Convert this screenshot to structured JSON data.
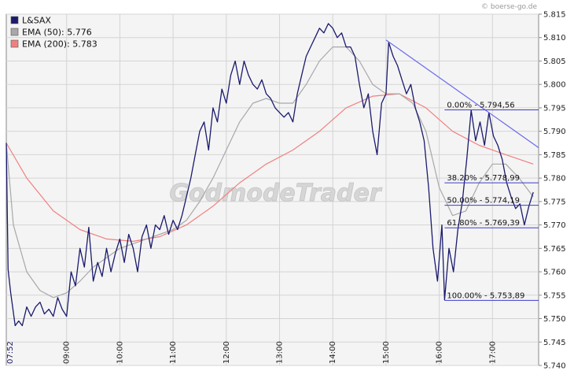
{
  "source": "© boerse-go.de",
  "watermark": "GodmodeTrader",
  "legend": [
    {
      "label": "L&SAX",
      "color": "#1a1a6e"
    },
    {
      "label": "EMA (50): 5.776",
      "color": "#a8a8a8"
    },
    {
      "label": "EMA (200): 5.783",
      "color": "#f08080"
    }
  ],
  "chart_data": {
    "type": "line",
    "xlim": [
      "07:52",
      "17:52"
    ],
    "ylim": [
      5.74,
      5.815
    ],
    "y_ticks": [
      "5.740",
      "5.745",
      "5.750",
      "5.755",
      "5.760",
      "5.765",
      "5.770",
      "5.775",
      "5.780",
      "5.785",
      "5.790",
      "5.795",
      "5.800",
      "5.805",
      "5.810",
      "5.815"
    ],
    "x_ticks": [
      "07:52",
      "09:00",
      "10:00",
      "11:00",
      "12:00",
      "13:00",
      "14:00",
      "15:00",
      "16:00",
      "17:00"
    ],
    "grid": true,
    "legend_position": "top-left",
    "series": [
      {
        "name": "L&SAX",
        "color": "#1a1a6e",
        "points": [
          [
            "07:52",
            5.7875
          ],
          [
            "07:54",
            5.7605
          ],
          [
            "07:57",
            5.7555
          ],
          [
            "08:02",
            5.7485
          ],
          [
            "08:06",
            5.7495
          ],
          [
            "08:10",
            5.7485
          ],
          [
            "08:15",
            5.7525
          ],
          [
            "08:20",
            5.7505
          ],
          [
            "08:25",
            5.7525
          ],
          [
            "08:30",
            5.7535
          ],
          [
            "08:35",
            5.751
          ],
          [
            "08:40",
            5.752
          ],
          [
            "08:45",
            5.7505
          ],
          [
            "08:50",
            5.7545
          ],
          [
            "08:55",
            5.752
          ],
          [
            "09:00",
            5.7505
          ],
          [
            "09:05",
            5.76
          ],
          [
            "09:10",
            5.757
          ],
          [
            "09:15",
            5.765
          ],
          [
            "09:20",
            5.761
          ],
          [
            "09:25",
            5.7695
          ],
          [
            "09:30",
            5.758
          ],
          [
            "09:35",
            5.762
          ],
          [
            "09:40",
            5.759
          ],
          [
            "09:45",
            5.765
          ],
          [
            "09:50",
            5.76
          ],
          [
            "09:55",
            5.764
          ],
          [
            "10:00",
            5.767
          ],
          [
            "10:05",
            5.762
          ],
          [
            "10:10",
            5.768
          ],
          [
            "10:15",
            5.765
          ],
          [
            "10:20",
            5.76
          ],
          [
            "10:25",
            5.7675
          ],
          [
            "10:30",
            5.77
          ],
          [
            "10:35",
            5.765
          ],
          [
            "10:40",
            5.77
          ],
          [
            "10:45",
            5.769
          ],
          [
            "10:50",
            5.772
          ],
          [
            "10:55",
            5.768
          ],
          [
            "11:00",
            5.771
          ],
          [
            "11:05",
            5.769
          ],
          [
            "11:10",
            5.772
          ],
          [
            "11:15",
            5.776
          ],
          [
            "11:20",
            5.78
          ],
          [
            "11:25",
            5.785
          ],
          [
            "11:30",
            5.79
          ],
          [
            "11:35",
            5.792
          ],
          [
            "11:40",
            5.786
          ],
          [
            "11:45",
            5.795
          ],
          [
            "11:50",
            5.792
          ],
          [
            "11:55",
            5.799
          ],
          [
            "12:00",
            5.796
          ],
          [
            "12:05",
            5.802
          ],
          [
            "12:10",
            5.805
          ],
          [
            "12:15",
            5.8
          ],
          [
            "12:20",
            5.805
          ],
          [
            "12:25",
            5.802
          ],
          [
            "12:30",
            5.8
          ],
          [
            "12:35",
            5.799
          ],
          [
            "12:40",
            5.801
          ],
          [
            "12:45",
            5.798
          ],
          [
            "12:50",
            5.797
          ],
          [
            "12:55",
            5.795
          ],
          [
            "13:00",
            5.794
          ],
          [
            "13:05",
            5.793
          ],
          [
            "13:10",
            5.794
          ],
          [
            "13:15",
            5.792
          ],
          [
            "13:20",
            5.798
          ],
          [
            "13:25",
            5.802
          ],
          [
            "13:30",
            5.806
          ],
          [
            "13:35",
            5.808
          ],
          [
            "13:40",
            5.81
          ],
          [
            "13:45",
            5.812
          ],
          [
            "13:50",
            5.811
          ],
          [
            "13:55",
            5.813
          ],
          [
            "14:00",
            5.812
          ],
          [
            "14:05",
            5.81
          ],
          [
            "14:10",
            5.811
          ],
          [
            "14:15",
            5.808
          ],
          [
            "14:20",
            5.808
          ],
          [
            "14:25",
            5.806
          ],
          [
            "14:30",
            5.8
          ],
          [
            "14:35",
            5.795
          ],
          [
            "14:40",
            5.798
          ],
          [
            "14:45",
            5.79
          ],
          [
            "14:50",
            5.785
          ],
          [
            "14:55",
            5.796
          ],
          [
            "15:00",
            5.798
          ],
          [
            "15:03",
            5.809
          ],
          [
            "15:08",
            5.806
          ],
          [
            "15:13",
            5.804
          ],
          [
            "15:18",
            5.801
          ],
          [
            "15:23",
            5.798
          ],
          [
            "15:28",
            5.8
          ],
          [
            "15:33",
            5.795
          ],
          [
            "15:38",
            5.792
          ],
          [
            "15:43",
            5.788
          ],
          [
            "15:48",
            5.778
          ],
          [
            "15:53",
            5.765
          ],
          [
            "15:58",
            5.758
          ],
          [
            "16:03",
            5.77
          ],
          [
            "16:06",
            5.754
          ],
          [
            "16:11",
            5.765
          ],
          [
            "16:16",
            5.76
          ],
          [
            "16:21",
            5.769
          ],
          [
            "16:26",
            5.775
          ],
          [
            "16:31",
            5.784
          ],
          [
            "16:36",
            5.7945
          ],
          [
            "16:41",
            5.788
          ],
          [
            "16:46",
            5.792
          ],
          [
            "16:51",
            5.787
          ],
          [
            "16:56",
            5.794
          ],
          [
            "17:01",
            5.789
          ],
          [
            "17:06",
            5.787
          ],
          [
            "17:11",
            5.784
          ],
          [
            "17:16",
            5.779
          ],
          [
            "17:21",
            5.776
          ],
          [
            "17:26",
            5.7735
          ],
          [
            "17:31",
            5.7745
          ],
          [
            "17:36",
            5.77
          ],
          [
            "17:41",
            5.774
          ],
          [
            "17:46",
            5.777
          ]
        ]
      },
      {
        "name": "EMA (50)",
        "color": "#a8a8a8",
        "points": [
          [
            "07:52",
            5.7875
          ],
          [
            "08:00",
            5.77
          ],
          [
            "08:15",
            5.76
          ],
          [
            "08:30",
            5.756
          ],
          [
            "08:45",
            5.7545
          ],
          [
            "09:00",
            5.7555
          ],
          [
            "09:15",
            5.758
          ],
          [
            "09:30",
            5.761
          ],
          [
            "09:45",
            5.763
          ],
          [
            "10:00",
            5.765
          ],
          [
            "10:15",
            5.766
          ],
          [
            "10:30",
            5.767
          ],
          [
            "10:45",
            5.768
          ],
          [
            "11:00",
            5.769
          ],
          [
            "11:15",
            5.771
          ],
          [
            "11:30",
            5.775
          ],
          [
            "11:45",
            5.78
          ],
          [
            "12:00",
            5.786
          ],
          [
            "12:15",
            5.792
          ],
          [
            "12:30",
            5.796
          ],
          [
            "12:45",
            5.797
          ],
          [
            "13:00",
            5.796
          ],
          [
            "13:15",
            5.796
          ],
          [
            "13:30",
            5.8
          ],
          [
            "13:45",
            5.805
          ],
          [
            "14:00",
            5.808
          ],
          [
            "14:15",
            5.808
          ],
          [
            "14:30",
            5.805
          ],
          [
            "14:45",
            5.8
          ],
          [
            "15:00",
            5.798
          ],
          [
            "15:15",
            5.798
          ],
          [
            "15:30",
            5.796
          ],
          [
            "15:45",
            5.79
          ],
          [
            "16:00",
            5.778
          ],
          [
            "16:15",
            5.772
          ],
          [
            "16:30",
            5.773
          ],
          [
            "16:45",
            5.779
          ],
          [
            "17:00",
            5.783
          ],
          [
            "17:15",
            5.783
          ],
          [
            "17:30",
            5.78
          ],
          [
            "17:46",
            5.776
          ]
        ]
      },
      {
        "name": "EMA (200)",
        "color": "#f08080",
        "points": [
          [
            "07:52",
            5.7875
          ],
          [
            "08:15",
            5.78
          ],
          [
            "08:45",
            5.773
          ],
          [
            "09:15",
            5.769
          ],
          [
            "09:45",
            5.767
          ],
          [
            "10:15",
            5.7665
          ],
          [
            "10:45",
            5.7675
          ],
          [
            "11:15",
            5.77
          ],
          [
            "11:45",
            5.774
          ],
          [
            "12:15",
            5.779
          ],
          [
            "12:45",
            5.783
          ],
          [
            "13:15",
            5.786
          ],
          [
            "13:45",
            5.79
          ],
          [
            "14:15",
            5.795
          ],
          [
            "14:45",
            5.7975
          ],
          [
            "15:15",
            5.798
          ],
          [
            "15:45",
            5.795
          ],
          [
            "16:15",
            5.79
          ],
          [
            "16:45",
            5.787
          ],
          [
            "17:15",
            5.785
          ],
          [
            "17:46",
            5.783
          ]
        ]
      }
    ],
    "trendline": {
      "from": [
        "15:00",
        5.8095
      ],
      "to": [
        "17:52",
        5.7865
      ],
      "color": "#6a6aee"
    },
    "fibonacci": {
      "start": "16:06",
      "end": "17:52",
      "levels": [
        {
          "label": "0.00% - 5.794,56",
          "value": 5.79456
        },
        {
          "label": "38.20% - 5.778,99",
          "value": 5.77899
        },
        {
          "label": "50.00% - 5.774,19",
          "value": 5.77419
        },
        {
          "label": "61.80% - 5.769,39",
          "value": 5.76939
        },
        {
          "label": "100.00% - 5.753,89",
          "value": 5.75389
        }
      ]
    }
  }
}
